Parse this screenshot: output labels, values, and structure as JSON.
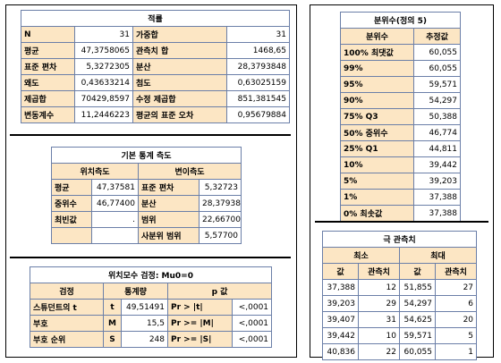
{
  "moments": {
    "title": "적률",
    "rows": [
      [
        "N",
        "31",
        "가중합",
        "31"
      ],
      [
        "평균",
        "47,3758065",
        "관측치 합",
        "1468,65"
      ],
      [
        "표준 편차",
        "5,3272305",
        "분산",
        "28,3793848"
      ],
      [
        "왜도",
        "0,43633214",
        "첨도",
        "0,63025159"
      ],
      [
        "제곱합",
        "70429,8597",
        "수정 제곱합",
        "851,381545"
      ],
      [
        "변동계수",
        "11,2446223",
        "평균의 표준 오차",
        "0,95679884"
      ]
    ]
  },
  "basic": {
    "title": "기본 통계 측도",
    "loc_header": "위치측도",
    "var_header": "변이측도",
    "rows": [
      [
        "평균",
        "47,37581",
        "표준 편차",
        "5,32723"
      ],
      [
        "중위수",
        "46,77400",
        "분산",
        "28,37938"
      ],
      [
        "최빈값",
        ".",
        "범위",
        "22,66700"
      ],
      [
        "",
        "",
        "사분위 범위",
        "5,57700"
      ]
    ]
  },
  "location": {
    "title": "위치모수 검정: Mu0=0",
    "headers": [
      "검정",
      "통계량",
      "p 값"
    ],
    "rows": [
      [
        "스튜던트의 t",
        "t",
        "49,51491",
        "Pr > |t|",
        "<,0001"
      ],
      [
        "부호",
        "M",
        "15,5",
        "Pr >= |M|",
        "<,0001"
      ],
      [
        "부호 순위",
        "S",
        "248",
        "Pr >= |S|",
        "<,0001"
      ]
    ]
  },
  "quantiles": {
    "title": "분위수(정의 5)",
    "headers": [
      "분위수",
      "추정값"
    ],
    "rows": [
      [
        "100% 최댓값",
        "60,055"
      ],
      [
        "99%",
        "60,055"
      ],
      [
        "95%",
        "59,571"
      ],
      [
        "90%",
        "54,297"
      ],
      [
        "75% Q3",
        "50,388"
      ],
      [
        "50% 중위수",
        "46,774"
      ],
      [
        "25% Q1",
        "44,811"
      ],
      [
        "10%",
        "39,442"
      ],
      [
        "5%",
        "39,203"
      ],
      [
        "1%",
        "37,388"
      ],
      [
        "0% 최솟값",
        "37,388"
      ]
    ]
  },
  "extremes": {
    "title": "극 관측치",
    "min_header": "최소",
    "max_header": "최대",
    "sub_headers": [
      "값",
      "관측치",
      "값",
      "관측치"
    ],
    "rows": [
      [
        "37,388",
        "12",
        "51,855",
        "27"
      ],
      [
        "39,203",
        "29",
        "54,297",
        "6"
      ],
      [
        "39,407",
        "31",
        "54,625",
        "20"
      ],
      [
        "39,442",
        "10",
        "59,571",
        "5"
      ],
      [
        "40,836",
        "22",
        "60,055",
        "1"
      ]
    ]
  },
  "colors": {
    "header_fill": "#fce6c4",
    "grid": "#6b7fa8"
  }
}
